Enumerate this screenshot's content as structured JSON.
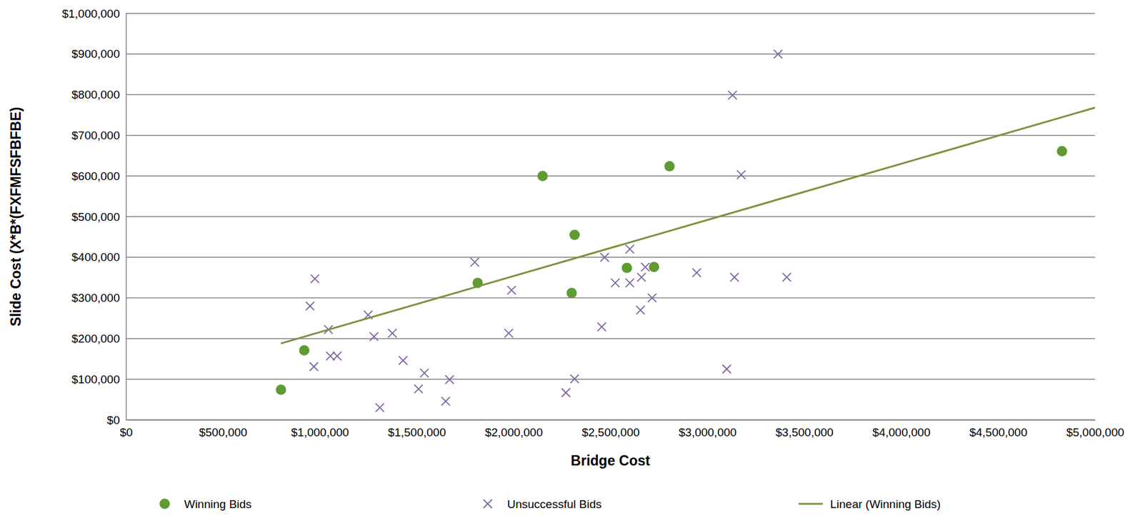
{
  "chart_data": {
    "type": "scatter",
    "x_label": "Bridge Cost",
    "y_label": "Slide Cost (X*B*(FXFMFSFBFBE)",
    "xlim": [
      0,
      5000000
    ],
    "xticks": [
      {
        "value": 0,
        "label": "$0"
      },
      {
        "value": 500000,
        "label": "$500,000"
      },
      {
        "value": 1000000,
        "label": "$1,000,000"
      },
      {
        "value": 1500000,
        "label": "$1,500,000"
      },
      {
        "value": 2000000,
        "label": "$2,000,000"
      },
      {
        "value": 2500000,
        "label": "$2,500,000"
      },
      {
        "value": 3000000,
        "label": "$3,000,000"
      },
      {
        "value": 3500000,
        "label": "$3,500,000"
      },
      {
        "value": 4000000,
        "label": "$4,000,000"
      },
      {
        "value": 4500000,
        "label": "$4,500,000"
      },
      {
        "value": 5000000,
        "label": "$5,000,000"
      }
    ],
    "ylim": [
      0,
      1000000
    ],
    "yticks": [
      {
        "value": 0,
        "label": "$0"
      },
      {
        "value": 100000,
        "label": "$100,000"
      },
      {
        "value": 200000,
        "label": "$200,000"
      },
      {
        "value": 300000,
        "label": "$300,000"
      },
      {
        "value": 400000,
        "label": "$400,000"
      },
      {
        "value": 500000,
        "label": "$500,000"
      },
      {
        "value": 600000,
        "label": "$600,000"
      },
      {
        "value": 700000,
        "label": "$700,000"
      },
      {
        "value": 800000,
        "label": "$800,000"
      },
      {
        "value": 900000,
        "label": "$900,000"
      },
      {
        "value": 1000000,
        "label": "$1,000,000"
      }
    ],
    "grid": true,
    "legend": "bottom",
    "series": [
      {
        "name": "Winning Bids",
        "type": "scatter",
        "marker": "circle",
        "color": "#5f9b33",
        "x": [
          800000,
          920000,
          1815000,
          2150000,
          2300000,
          2315000,
          2585000,
          2725000,
          2805000,
          4830000
        ],
        "values": [
          74000,
          171000,
          337000,
          600000,
          312000,
          455000,
          374000,
          376000,
          624000,
          661000
        ]
      },
      {
        "name": "Unsuccessful Bids",
        "type": "scatter",
        "marker": "x",
        "color": "#8064a2",
        "x": [
          975000,
          950000,
          1045000,
          970000,
          1055000,
          1090000,
          1250000,
          1280000,
          1375000,
          1310000,
          1430000,
          1510000,
          1540000,
          1670000,
          1650000,
          1800000,
          1990000,
          1975000,
          2270000,
          2315000,
          2455000,
          2470000,
          2525000,
          2600000,
          2600000,
          2655000,
          2660000,
          2680000,
          2715000,
          2945000,
          3100000,
          3130000,
          3140000,
          3175000,
          3365000,
          3410000
        ],
        "values": [
          347000,
          280000,
          222000,
          131000,
          157000,
          157000,
          258000,
          205000,
          213000,
          30000,
          146000,
          76000,
          115000,
          99000,
          46000,
          388000,
          319000,
          213000,
          67000,
          101000,
          229000,
          400000,
          337000,
          420000,
          337000,
          270000,
          351000,
          376000,
          300000,
          362000,
          125000,
          799000,
          351000,
          603000,
          900000,
          351000
        ]
      },
      {
        "name": "Linear (Winning Bids)",
        "type": "line",
        "line_style": "solid",
        "color": "#77933c",
        "x": [
          800000,
          5000000
        ],
        "values": [
          188000,
          768000
        ]
      }
    ]
  }
}
